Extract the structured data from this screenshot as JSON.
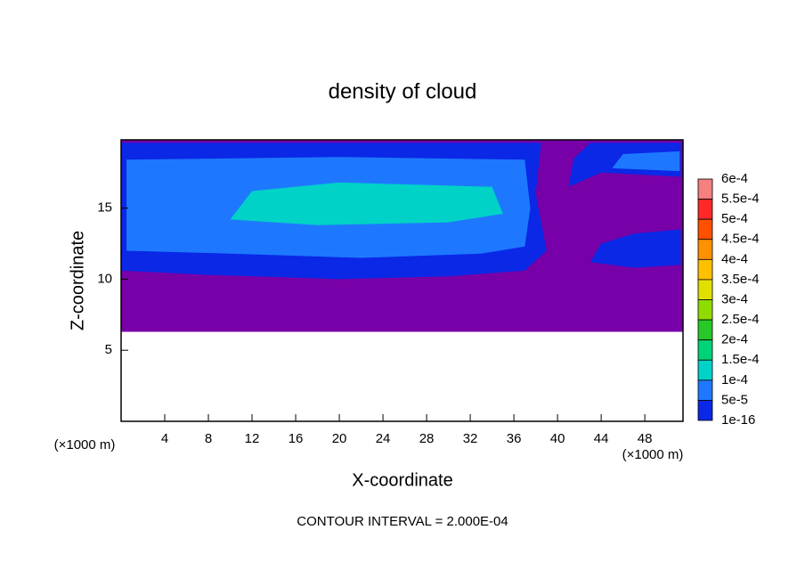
{
  "chart_data": {
    "type": "contour",
    "title": "density of cloud",
    "xlabel": "X-coordinate",
    "ylabel": "Z-coordinate",
    "xunit": "(×1000 m)",
    "yunit": "(×1000 m)",
    "annotation": "CONTOUR INTERVAL = 2.000E-04",
    "xlim": [
      0,
      51.5
    ],
    "ylim": [
      0,
      19.8
    ],
    "xticks": [
      4,
      8,
      12,
      16,
      20,
      24,
      28,
      32,
      36,
      40,
      44,
      48
    ],
    "yticks": [
      5,
      10,
      15
    ],
    "colorbar": {
      "levels": [
        {
          "value": 0.0006,
          "label": "6e-4"
        },
        {
          "value": 0.00055,
          "label": "5.5e-4"
        },
        {
          "value": 0.0005,
          "label": "5e-4"
        },
        {
          "value": 0.00045,
          "label": "4.5e-4"
        },
        {
          "value": 0.0004,
          "label": "4e-4"
        },
        {
          "value": 0.00035,
          "label": "3.5e-4"
        },
        {
          "value": 0.0003,
          "label": "3e-4"
        },
        {
          "value": 0.00025,
          "label": "2.5e-4"
        },
        {
          "value": 0.0002,
          "label": "2e-4"
        },
        {
          "value": 0.00015,
          "label": "1.5e-4"
        },
        {
          "value": 0.0001,
          "label": "1e-4"
        },
        {
          "value": 5e-05,
          "label": "5e-5"
        },
        {
          "value": 1e-16,
          "label": "1e-16"
        }
      ],
      "colors": [
        "#f48080",
        "#ff2828",
        "#ff5000",
        "#ff9000",
        "#ffc000",
        "#e0e000",
        "#90dc00",
        "#28c828",
        "#00d278",
        "#00d2c8",
        "#1e78ff",
        "#0a28e6",
        "#7800a8"
      ]
    }
  }
}
